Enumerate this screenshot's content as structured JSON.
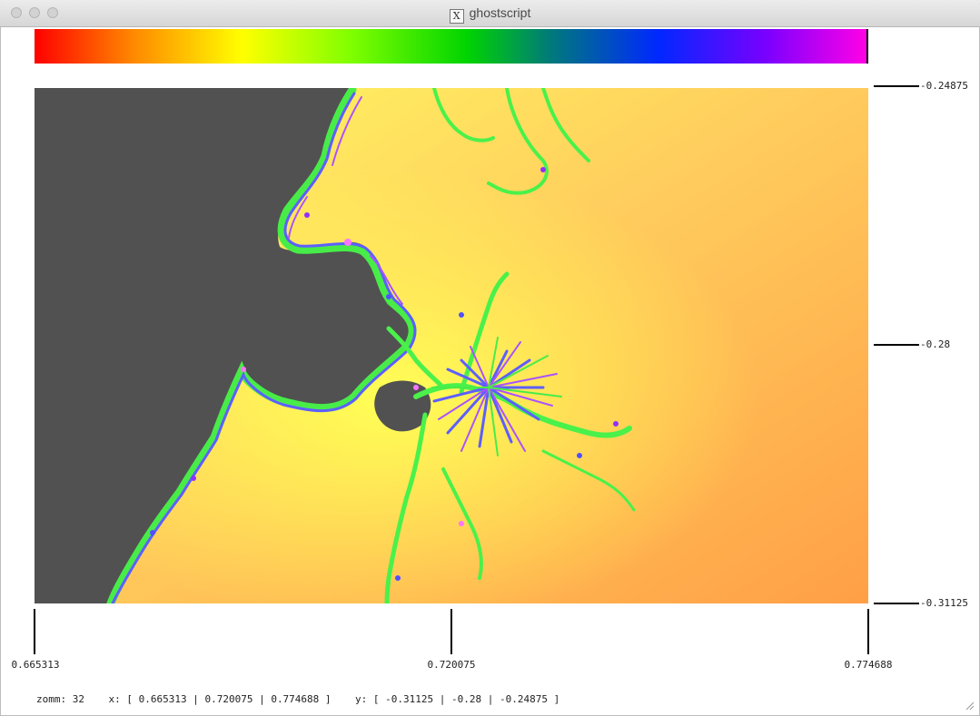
{
  "window": {
    "title": "ghostscript",
    "app_icon_glyph": "X"
  },
  "colorbar": {
    "colors": [
      "#ff0000",
      "#ff8a00",
      "#ffff00",
      "#80ff00",
      "#00d400",
      "#007a7a",
      "#0028ff",
      "#7a00ff",
      "#ff00e6"
    ]
  },
  "axes": {
    "x_ticks": [
      "0.665313",
      "0.720075",
      "0.774688"
    ],
    "y_ticks": [
      "-0.24875",
      "-0.28",
      "-0.31125"
    ]
  },
  "status": {
    "zoom_label": "zomm:",
    "zoom_value": "32",
    "x_label": "x:",
    "x_range": "[ 0.665313 | 0.720075 | 0.774688 ]",
    "y_label": "y:",
    "y_range": "[ -0.31125 | -0.28 | -0.24875 ]"
  },
  "fractal_colors": {
    "interior": "#2a2a2a",
    "near_yellow": "#ffff33",
    "mid_orange": "#ffb23a",
    "far_orange": "#ff8a1e",
    "boundary_green": "#22ee22",
    "boundary_blue": "#3a3aff",
    "boundary_purple": "#9a2cff",
    "boundary_cyan": "#2ad4c0"
  }
}
